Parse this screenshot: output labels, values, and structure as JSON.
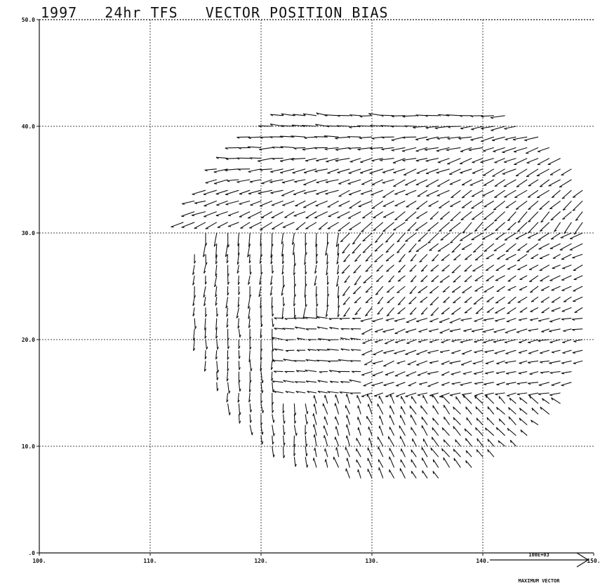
{
  "title": "1997   24hr TFS   VECTOR POSITION BIAS",
  "chart_data": {
    "type": "vector-field",
    "title": "1997   24hr TFS   VECTOR POSITION BIAS",
    "x_ticks": [
      "100.",
      "110.",
      "120.",
      "130.",
      "140.",
      "150."
    ],
    "y_ticks": [
      "50.0",
      "40.0",
      "30.0",
      "20.0",
      "10.0",
      ".0"
    ],
    "xlim": [
      100,
      150
    ],
    "ylim": [
      0,
      50
    ],
    "grid": true,
    "reference_vector": {
      "value_label": "100E+03",
      "caption": "MAXIMUM VECTOR"
    }
  }
}
